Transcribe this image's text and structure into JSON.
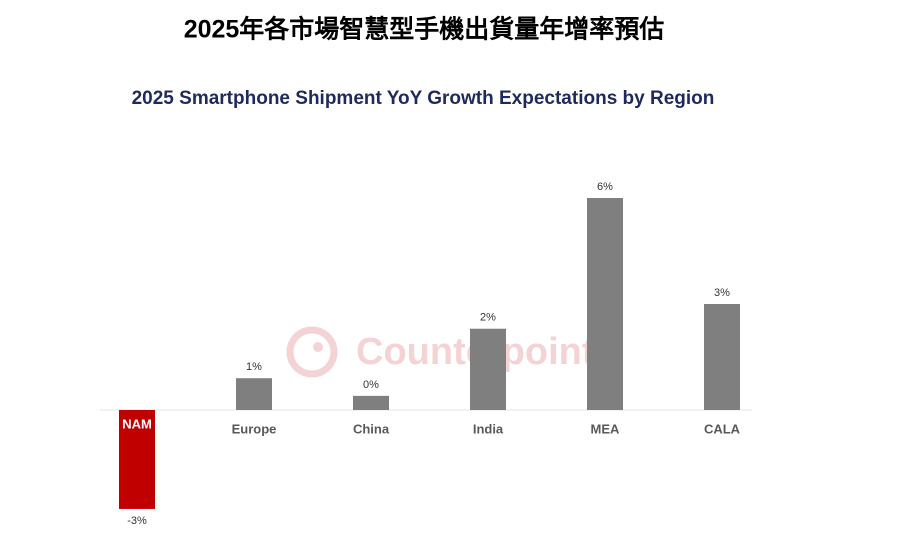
{
  "chart_data": {
    "type": "bar",
    "title": "2025年各市場智慧型手機出貨量年增率預估",
    "subtitle": "2025 Smartphone Shipment YoY Growth Expectations by Region",
    "watermark": "Counterpoint",
    "categories": [
      "NAM",
      "Europe",
      "China",
      "India",
      "MEA",
      "CALA"
    ],
    "values": [
      -2.8,
      0.9,
      0.4,
      2.3,
      6.0,
      3.0
    ],
    "value_labels": [
      "-3%",
      "1%",
      "0%",
      "2%",
      "6%",
      "3%"
    ],
    "colors": [
      "#c00000",
      "#7f7f7f",
      "#7f7f7f",
      "#7f7f7f",
      "#7f7f7f",
      "#7f7f7f"
    ]
  }
}
